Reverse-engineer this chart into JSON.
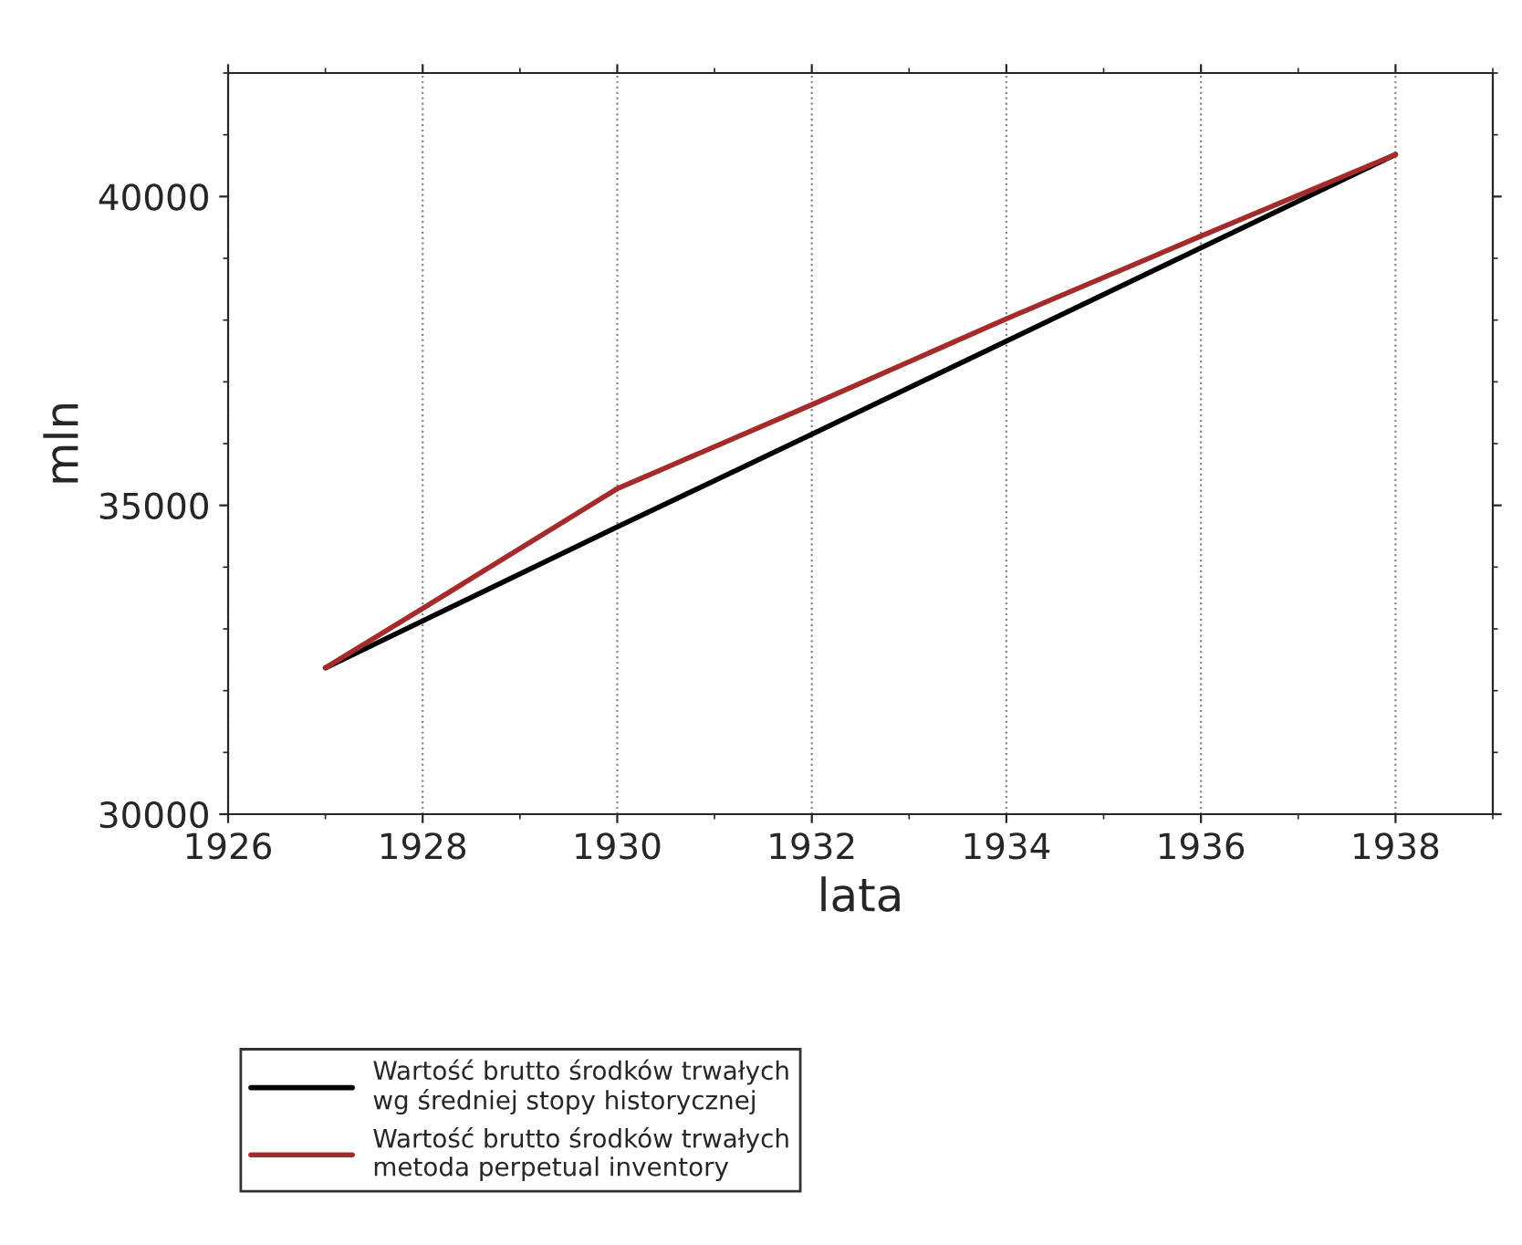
{
  "chart_data": {
    "type": "line",
    "xlabel": "lata",
    "ylabel": "mln",
    "x": [
      1927,
      1928,
      1930,
      1932,
      1934,
      1936,
      1938
    ],
    "series": [
      {
        "name": "Wartość brutto środków trwałych\nwg średniej stopy historycznej",
        "color": "#000000",
        "values": [
          32370,
          33130,
          34650,
          36150,
          37660,
          39170,
          40680
        ]
      },
      {
        "name": "Wartość brutto środków trwałych\nmetoda perpetual inventory",
        "color": "#a52a2a",
        "values": [
          32370,
          33330,
          35270,
          36630,
          38020,
          39360,
          40680
        ]
      }
    ],
    "xlim": [
      1926,
      1939
    ],
    "xticks": [
      1926,
      1928,
      1930,
      1932,
      1934,
      1936,
      1938
    ],
    "ylim": [
      30000,
      42000
    ],
    "yticks": [
      30000,
      35000,
      40000
    ],
    "grid": "x",
    "legend": "bottom left",
    "marker": "none",
    "line_style": "solid"
  }
}
